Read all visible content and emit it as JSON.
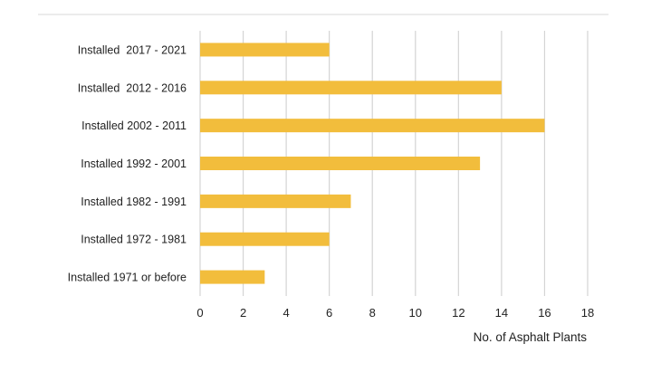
{
  "chart_data": {
    "type": "bar",
    "orientation": "horizontal",
    "categories": [
      "Installed  2017 - 2021",
      "Installed  2012 - 2016",
      "Installed 2002 - 2011",
      "Installed 1992 - 2001",
      "Installed 1982 - 1991",
      "Installed 1972 - 1981",
      "Installed 1971 or before"
    ],
    "values": [
      6,
      14,
      16,
      13,
      7,
      6,
      3
    ],
    "xlabel": "No. of Asphalt Plants",
    "ylabel": "",
    "xlim": [
      0,
      18
    ],
    "xticks": [
      "0",
      "2",
      "4",
      "6",
      "8",
      "10",
      "12",
      "14",
      "16",
      "18"
    ],
    "grid": "vertical",
    "bar_color": "#F2BD3C",
    "grid_color": "#D4D4D4"
  }
}
